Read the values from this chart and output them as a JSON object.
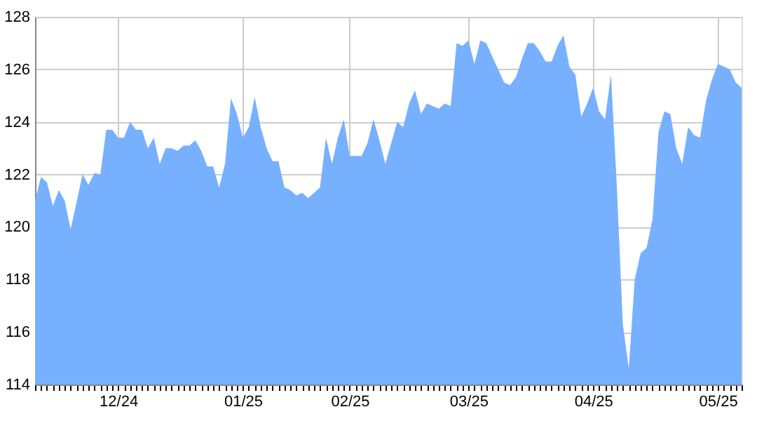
{
  "chart_data": {
    "type": "area",
    "categories": [
      null,
      null,
      null,
      null,
      null,
      null,
      null,
      null,
      null,
      null,
      null,
      null,
      null,
      null,
      "12/24",
      null,
      null,
      null,
      null,
      null,
      null,
      null,
      null,
      null,
      null,
      null,
      null,
      null,
      null,
      null,
      null,
      null,
      null,
      null,
      null,
      "01/25",
      null,
      null,
      null,
      null,
      null,
      null,
      null,
      null,
      null,
      null,
      null,
      null,
      null,
      null,
      null,
      null,
      null,
      "02/25",
      null,
      null,
      null,
      null,
      null,
      null,
      null,
      null,
      null,
      null,
      null,
      null,
      null,
      null,
      null,
      null,
      null,
      null,
      null,
      "03/25",
      null,
      null,
      null,
      null,
      null,
      null,
      null,
      null,
      null,
      null,
      null,
      null,
      null,
      null,
      null,
      null,
      null,
      null,
      null,
      null,
      "04/25",
      null,
      null,
      null,
      null,
      null,
      null,
      null,
      null,
      null,
      null,
      null,
      null,
      null,
      null,
      null,
      null,
      null,
      null,
      null,
      null,
      "05/25",
      null,
      null,
      null,
      null
    ],
    "values": [
      121.0,
      121.9,
      121.7,
      120.8,
      121.4,
      121.0,
      119.9,
      120.95,
      122.0,
      121.6,
      122.05,
      122.0,
      123.7,
      123.7,
      123.4,
      123.4,
      124.0,
      123.7,
      123.7,
      123.0,
      123.4,
      122.4,
      123.0,
      123.0,
      122.9,
      123.1,
      123.1,
      123.3,
      122.9,
      122.3,
      122.3,
      121.5,
      122.4,
      124.9,
      124.3,
      123.4,
      123.8,
      124.95,
      123.8,
      123.0,
      122.5,
      122.5,
      121.5,
      121.4,
      121.2,
      121.3,
      121.1,
      121.3,
      121.5,
      123.4,
      122.4,
      123.4,
      124.1,
      122.7,
      122.7,
      122.7,
      123.2,
      124.1,
      123.3,
      122.4,
      123.2,
      124.0,
      123.8,
      124.7,
      125.2,
      124.3,
      124.7,
      124.6,
      124.5,
      124.7,
      124.6,
      127.0,
      126.9,
      127.1,
      126.2,
      127.1,
      127.0,
      126.5,
      126.0,
      125.5,
      125.4,
      125.7,
      126.4,
      127.0,
      127.0,
      126.7,
      126.3,
      126.3,
      126.9,
      127.3,
      126.1,
      125.8,
      124.2,
      124.7,
      125.3,
      124.4,
      124.1,
      125.8,
      121.5,
      116.3,
      114.6,
      118.0,
      119.0,
      119.2,
      120.3,
      123.6,
      124.4,
      124.3,
      123.0,
      122.4,
      123.8,
      123.5,
      123.4,
      124.8,
      125.6,
      126.2,
      126.1,
      126.0,
      125.5,
      125.3
    ],
    "color": "#77b0ff",
    "ylim": [
      114,
      128
    ],
    "yticks": [
      114,
      116,
      118,
      120,
      122,
      124,
      126,
      128
    ],
    "grid": true
  }
}
